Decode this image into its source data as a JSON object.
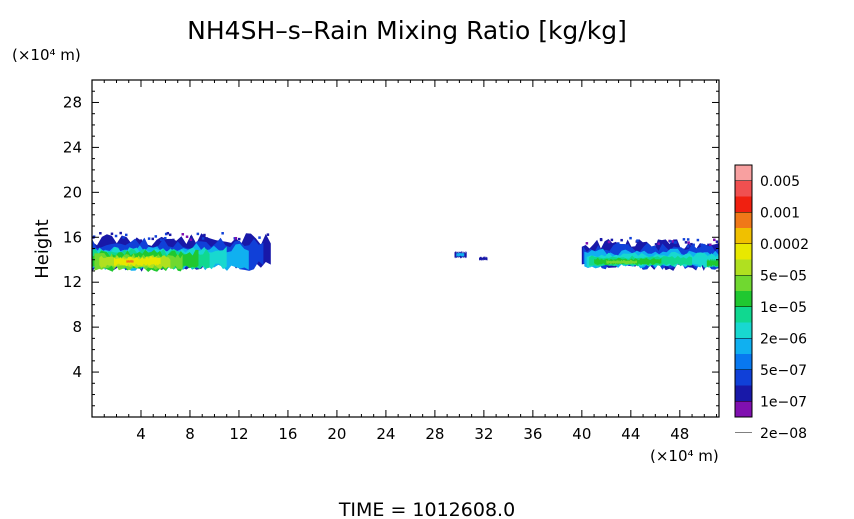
{
  "chart_data": {
    "type": "heatmap",
    "title": "NH4SH–s–Rain Mixing Ratio [kg/kg]",
    "xlabel": "",
    "x_unit": "(×10⁴ m)",
    "ylabel": "Height",
    "y_unit": "(×10⁴ m)",
    "xlim": [
      0,
      51.2
    ],
    "ylim": [
      0,
      30
    ],
    "x_ticks": [
      4,
      8,
      12,
      16,
      20,
      24,
      28,
      32,
      36,
      40,
      44,
      48
    ],
    "x_tick_labels": [
      "4",
      "8",
      "12",
      "16",
      "20",
      "24",
      "28",
      "32",
      "36",
      "40",
      "44",
      "48"
    ],
    "y_ticks": [
      4,
      8,
      12,
      16,
      20,
      24,
      28
    ],
    "y_tick_labels": [
      "4",
      "8",
      "12",
      "16",
      "20",
      "24",
      "28"
    ],
    "colorbar": {
      "labels": [
        "0.005",
        "0.001",
        "0.0002",
        "5e−05",
        "1e−05",
        "2e−06",
        "5e−07",
        "1e−07",
        "2e−08"
      ],
      "colors": [
        "#f8a0a0",
        "#f05050",
        "#f02010",
        "#f07818",
        "#f0c000",
        "#e8e800",
        "#b0e020",
        "#70d830",
        "#20c830",
        "#10d890",
        "#18d8d0",
        "#10b0f0",
        "#0878f0",
        "#1040d8",
        "#1818a8",
        "#8010b0"
      ]
    },
    "regions": [
      {
        "name": "left cloud band",
        "x_range": [
          0,
          14.5
        ],
        "z_range": [
          12.5,
          16.3
        ],
        "peak_level": "5e−05"
      },
      {
        "name": "small cell",
        "x_range": [
          29.6,
          30.6
        ],
        "z_range": [
          14.1,
          14.8
        ],
        "peak_level": "5e−07"
      },
      {
        "name": "small cell",
        "x_range": [
          31.6,
          32.3
        ],
        "z_range": [
          13.9,
          14.3
        ],
        "peak_level": "1e−07"
      },
      {
        "name": "right cloud band",
        "x_range": [
          40,
          51.2
        ],
        "z_range": [
          13.0,
          16.0
        ],
        "peak_level": "1e−05"
      }
    ],
    "grid": false,
    "legend": "colorbar-right"
  },
  "footer": {
    "time_label": "TIME  =  1012608.0"
  }
}
